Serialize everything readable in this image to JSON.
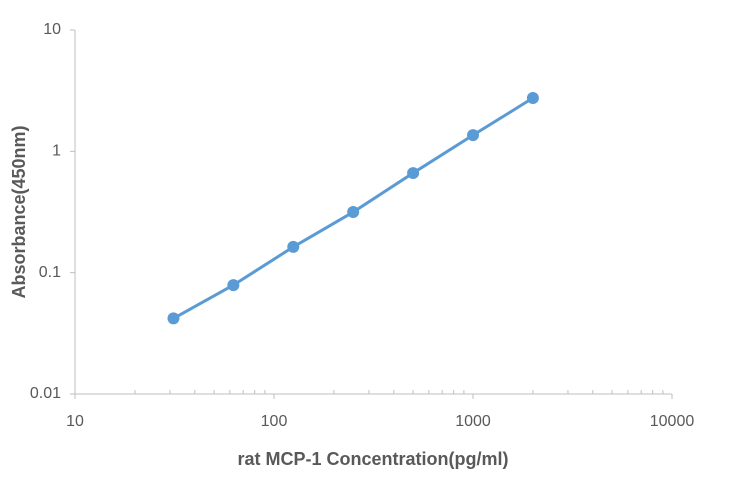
{
  "chart_data": {
    "type": "line",
    "log_x": true,
    "log_y": true,
    "xlabel": "rat MCP-1 Concentration(pg/ml)",
    "ylabel": "Absorbance(450nm)",
    "x": [
      31.25,
      62.5,
      125,
      250,
      500,
      1000,
      2000
    ],
    "series": [
      {
        "color": "#5b9bd5",
        "values": [
          0.042,
          0.079,
          0.163,
          0.316,
          0.662,
          1.36,
          2.75
        ]
      }
    ],
    "xlim": [
      10,
      10000
    ],
    "xticks": [
      10,
      100,
      1000,
      10000
    ],
    "ylim": [
      0.01,
      10
    ],
    "yticks": [
      0.01,
      0.1,
      1,
      10
    ],
    "grid": false
  }
}
